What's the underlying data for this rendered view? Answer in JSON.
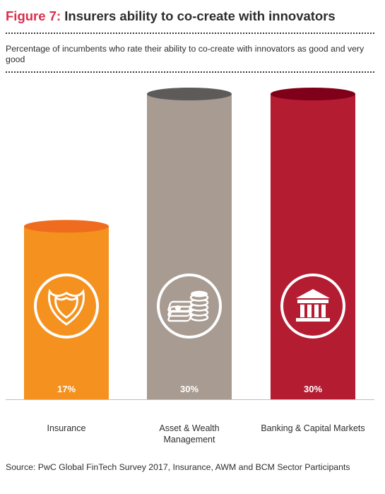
{
  "figure": {
    "number": "Figure 7:",
    "title": " Insurers ability to co-create with innovators",
    "subtitle": "Percentage of incumbents who rate their ability to co-create with innovators as good and very good",
    "source": "Source: PwC Global FinTech Survey 2017, Insurance, AWM and BCM Sector Participants"
  },
  "chart_data": {
    "type": "bar",
    "categories": [
      "Insurance",
      "Asset & Wealth Management",
      "Banking & Capital Markets"
    ],
    "values": [
      17,
      30,
      30
    ],
    "value_labels": [
      "17%",
      "30%",
      "30%"
    ],
    "unit": "%",
    "ylim": [
      0,
      30
    ],
    "grid": false,
    "bar_colors": [
      "#f5911e",
      "#a89b91",
      "#b41c32"
    ],
    "bar_top_colors": [
      "#ef6c1e",
      "#5d5a5a",
      "#7f0018"
    ],
    "icons": [
      "shield-icon",
      "coins-and-cash-icon",
      "bank-building-icon"
    ]
  }
}
